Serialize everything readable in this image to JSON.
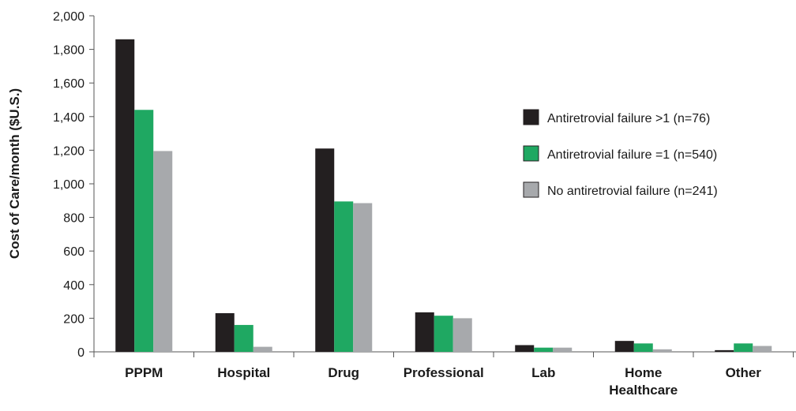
{
  "chart_data": {
    "type": "bar",
    "categories": [
      "PPPM",
      "Hospital",
      "Drug",
      "Professional",
      "Lab",
      "Home Healthcare",
      "Other"
    ],
    "category_lines": [
      [
        "PPPM"
      ],
      [
        "Hospital"
      ],
      [
        "Drug"
      ],
      [
        "Professional"
      ],
      [
        "Lab"
      ],
      [
        "Home",
        "Healthcare"
      ],
      [
        "Other"
      ]
    ],
    "series": [
      {
        "name": "Antiretrovial failure >1 (n=76)",
        "color": "#231f20",
        "values": [
          1860,
          230,
          1210,
          235,
          40,
          65,
          10
        ]
      },
      {
        "name": "Antiretrovial failure =1 (n=540)",
        "color": "#1fa862",
        "values": [
          1440,
          160,
          895,
          215,
          25,
          50,
          50
        ]
      },
      {
        "name": "No antiretrovial failure (n=241)",
        "color": "#a7a9ac",
        "values": [
          1195,
          30,
          885,
          200,
          25,
          15,
          35
        ]
      }
    ],
    "ylabel": "Cost of Care/month ($U.S.)",
    "xlabel": "",
    "title": "",
    "ylim": [
      0,
      2000
    ],
    "yticks": [
      0,
      200,
      400,
      600,
      800,
      1000,
      1200,
      1400,
      1600,
      1800,
      2000
    ],
    "ytick_labels": [
      "0",
      "200",
      "400",
      "600",
      "800",
      "1,000",
      "1,200",
      "1,400",
      "1,600",
      "1,800",
      "2,000"
    ],
    "grid": false,
    "legend_position": "right"
  }
}
